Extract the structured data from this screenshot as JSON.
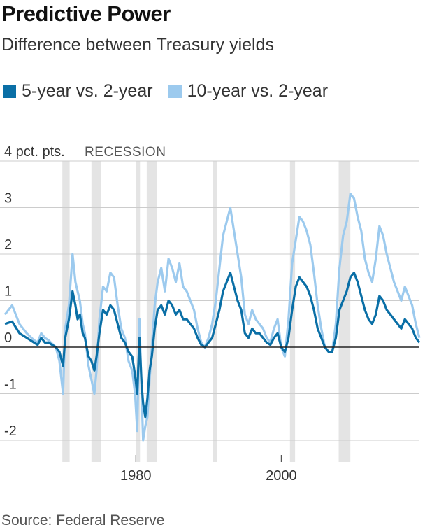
{
  "title": "Predictive Power",
  "subtitle": "Difference between Treasury yields",
  "source": "Source: Federal Reserve",
  "colors": {
    "series_5v2": "#0a6fa6",
    "series_10v2": "#9ccaee",
    "recession": "#e4e4e4",
    "zero_line": "#222222",
    "grid": "#cccccc"
  },
  "chart_data": {
    "type": "line",
    "title": "Predictive Power",
    "subtitle": "Difference between Treasury yields",
    "xlabel": "",
    "ylabel": "",
    "xlim": [
      1962,
      2019
    ],
    "ylim": [
      -2.5,
      4
    ],
    "grid": true,
    "legend_position": "top",
    "y_ticks": [
      {
        "value": 4,
        "label": "4 pct. pts."
      },
      {
        "value": 3,
        "label": "3"
      },
      {
        "value": 2,
        "label": "2"
      },
      {
        "value": 1,
        "label": "1"
      },
      {
        "value": 0,
        "label": "0"
      },
      {
        "value": -1,
        "label": "-1"
      },
      {
        "value": -2,
        "label": "-2"
      }
    ],
    "x_ticks": [
      {
        "value": 1980,
        "label": "1980"
      },
      {
        "value": 2000,
        "label": "2000"
      }
    ],
    "recession_label": "RECESSION",
    "recessions": [
      {
        "start": 1969.9,
        "end": 1970.9
      },
      {
        "start": 1973.9,
        "end": 1975.2
      },
      {
        "start": 1980.0,
        "end": 1980.5
      },
      {
        "start": 1981.5,
        "end": 1982.9
      },
      {
        "start": 1990.6,
        "end": 1991.2
      },
      {
        "start": 2001.2,
        "end": 2001.9
      },
      {
        "start": 2007.9,
        "end": 2009.5
      }
    ],
    "series": [
      {
        "name": "5-year vs. 2-year",
        "x": [
          1962.0,
          1963.0,
          1964.0,
          1965.0,
          1966.0,
          1966.5,
          1967.0,
          1967.5,
          1968.0,
          1969.0,
          1969.5,
          1970.0,
          1970.3,
          1970.8,
          1971.3,
          1971.7,
          1972.0,
          1972.3,
          1972.7,
          1973.0,
          1973.5,
          1973.9,
          1974.3,
          1974.6,
          1975.0,
          1975.5,
          1976.0,
          1976.5,
          1977.0,
          1977.5,
          1978.0,
          1978.5,
          1979.0,
          1979.5,
          1979.9,
          1980.2,
          1980.5,
          1980.8,
          1981.0,
          1981.3,
          1981.6,
          1981.9,
          1982.2,
          1982.6,
          1983.0,
          1983.5,
          1984.0,
          1984.5,
          1985.0,
          1985.5,
          1986.0,
          1986.5,
          1987.0,
          1987.5,
          1988.0,
          1988.5,
          1989.0,
          1989.5,
          1990.0,
          1990.5,
          1991.0,
          1991.5,
          1992.0,
          1992.5,
          1993.0,
          1993.5,
          1994.0,
          1994.5,
          1995.0,
          1995.5,
          1996.0,
          1996.5,
          1997.0,
          1997.5,
          1998.0,
          1998.5,
          1999.0,
          1999.5,
          2000.0,
          2000.5,
          2001.0,
          2001.5,
          2002.0,
          2002.5,
          2003.0,
          2003.5,
          2004.0,
          2004.5,
          2005.0,
          2005.5,
          2006.0,
          2006.5,
          2007.0,
          2007.5,
          2008.0,
          2008.5,
          2009.0,
          2009.5,
          2010.0,
          2010.5,
          2011.0,
          2011.5,
          2012.0,
          2012.5,
          2013.0,
          2013.5,
          2014.0,
          2014.5,
          2015.0,
          2015.5,
          2016.0,
          2016.5,
          2017.0,
          2017.5,
          2018.0,
          2018.5,
          2019.0
        ],
        "values": [
          0.5,
          0.55,
          0.3,
          0.2,
          0.1,
          0.05,
          0.2,
          0.1,
          0.1,
          0.0,
          -0.1,
          -0.4,
          0.2,
          0.6,
          1.2,
          0.9,
          0.6,
          0.7,
          0.3,
          0.2,
          -0.2,
          -0.3,
          -0.5,
          -0.2,
          0.3,
          0.8,
          0.7,
          0.9,
          0.8,
          0.5,
          0.2,
          0.1,
          -0.1,
          -0.2,
          -0.6,
          -1.0,
          0.2,
          -0.8,
          -1.2,
          -1.5,
          -1.1,
          -0.5,
          -0.2,
          0.4,
          0.8,
          0.9,
          0.7,
          1.0,
          0.9,
          0.7,
          0.8,
          0.6,
          0.6,
          0.5,
          0.4,
          0.2,
          0.05,
          0.0,
          0.1,
          0.2,
          0.5,
          0.8,
          1.2,
          1.4,
          1.6,
          1.3,
          1.0,
          0.8,
          0.3,
          0.2,
          0.4,
          0.3,
          0.3,
          0.2,
          0.1,
          0.05,
          0.2,
          0.3,
          0.0,
          -0.1,
          0.2,
          0.8,
          1.3,
          1.5,
          1.4,
          1.3,
          1.1,
          0.8,
          0.4,
          0.2,
          0.0,
          -0.1,
          -0.1,
          0.2,
          0.8,
          1.0,
          1.2,
          1.5,
          1.6,
          1.4,
          1.1,
          0.8,
          0.6,
          0.5,
          0.7,
          1.1,
          1.0,
          0.8,
          0.7,
          0.6,
          0.5,
          0.4,
          0.6,
          0.5,
          0.4,
          0.2,
          0.1
        ]
      },
      {
        "name": "10-year vs. 2-year",
        "x": [
          1962.0,
          1963.0,
          1964.0,
          1965.0,
          1966.0,
          1966.5,
          1967.0,
          1967.5,
          1968.0,
          1969.0,
          1969.5,
          1970.0,
          1970.3,
          1970.8,
          1971.3,
          1971.7,
          1972.0,
          1972.3,
          1972.7,
          1973.0,
          1973.5,
          1973.9,
          1974.3,
          1974.6,
          1975.0,
          1975.5,
          1976.0,
          1976.5,
          1977.0,
          1977.5,
          1978.0,
          1978.5,
          1979.0,
          1979.5,
          1979.9,
          1980.2,
          1980.5,
          1980.8,
          1981.0,
          1981.3,
          1981.6,
          1981.9,
          1982.2,
          1982.6,
          1983.0,
          1983.5,
          1984.0,
          1984.5,
          1985.0,
          1985.5,
          1986.0,
          1986.5,
          1987.0,
          1987.5,
          1988.0,
          1988.5,
          1989.0,
          1989.5,
          1990.0,
          1990.5,
          1991.0,
          1991.5,
          1992.0,
          1992.5,
          1993.0,
          1993.5,
          1994.0,
          1994.5,
          1995.0,
          1995.5,
          1996.0,
          1996.5,
          1997.0,
          1997.5,
          1998.0,
          1998.5,
          1999.0,
          1999.5,
          2000.0,
          2000.5,
          2001.0,
          2001.5,
          2002.0,
          2002.5,
          2003.0,
          2003.5,
          2004.0,
          2004.5,
          2005.0,
          2005.5,
          2006.0,
          2006.5,
          2007.0,
          2007.5,
          2008.0,
          2008.5,
          2009.0,
          2009.5,
          2010.0,
          2010.5,
          2011.0,
          2011.5,
          2012.0,
          2012.5,
          2013.0,
          2013.5,
          2014.0,
          2014.5,
          2015.0,
          2015.5,
          2016.0,
          2016.5,
          2017.0,
          2017.5,
          2018.0,
          2018.5,
          2019.0
        ],
        "values": [
          0.7,
          0.9,
          0.5,
          0.3,
          0.15,
          0.1,
          0.3,
          0.2,
          0.15,
          0.0,
          -0.3,
          -1.0,
          0.4,
          0.9,
          2.0,
          1.4,
          1.2,
          1.0,
          0.5,
          0.3,
          -0.4,
          -0.7,
          -1.0,
          -0.5,
          0.6,
          1.3,
          1.2,
          1.6,
          1.5,
          0.9,
          0.4,
          0.2,
          -0.3,
          -0.5,
          -1.0,
          -1.8,
          0.6,
          -1.0,
          -2.0,
          -1.7,
          -1.5,
          -0.7,
          0.0,
          0.9,
          1.4,
          1.7,
          1.2,
          1.9,
          1.7,
          1.4,
          1.8,
          1.3,
          1.2,
          1.0,
          0.8,
          0.4,
          0.1,
          0.0,
          0.2,
          0.5,
          1.0,
          1.7,
          2.4,
          2.7,
          3.0,
          2.5,
          2.0,
          1.5,
          0.7,
          0.5,
          0.8,
          0.6,
          0.5,
          0.4,
          0.2,
          0.1,
          0.4,
          0.6,
          0.0,
          -0.2,
          0.6,
          1.8,
          2.3,
          2.8,
          2.7,
          2.5,
          2.2,
          1.6,
          0.9,
          0.4,
          0.0,
          -0.1,
          -0.1,
          0.5,
          1.7,
          2.4,
          2.7,
          3.3,
          3.2,
          2.8,
          2.5,
          1.9,
          1.6,
          1.4,
          1.9,
          2.6,
          2.4,
          2.0,
          1.7,
          1.4,
          1.2,
          1.0,
          1.3,
          1.1,
          0.9,
          0.5,
          0.2
        ]
      }
    ]
  }
}
